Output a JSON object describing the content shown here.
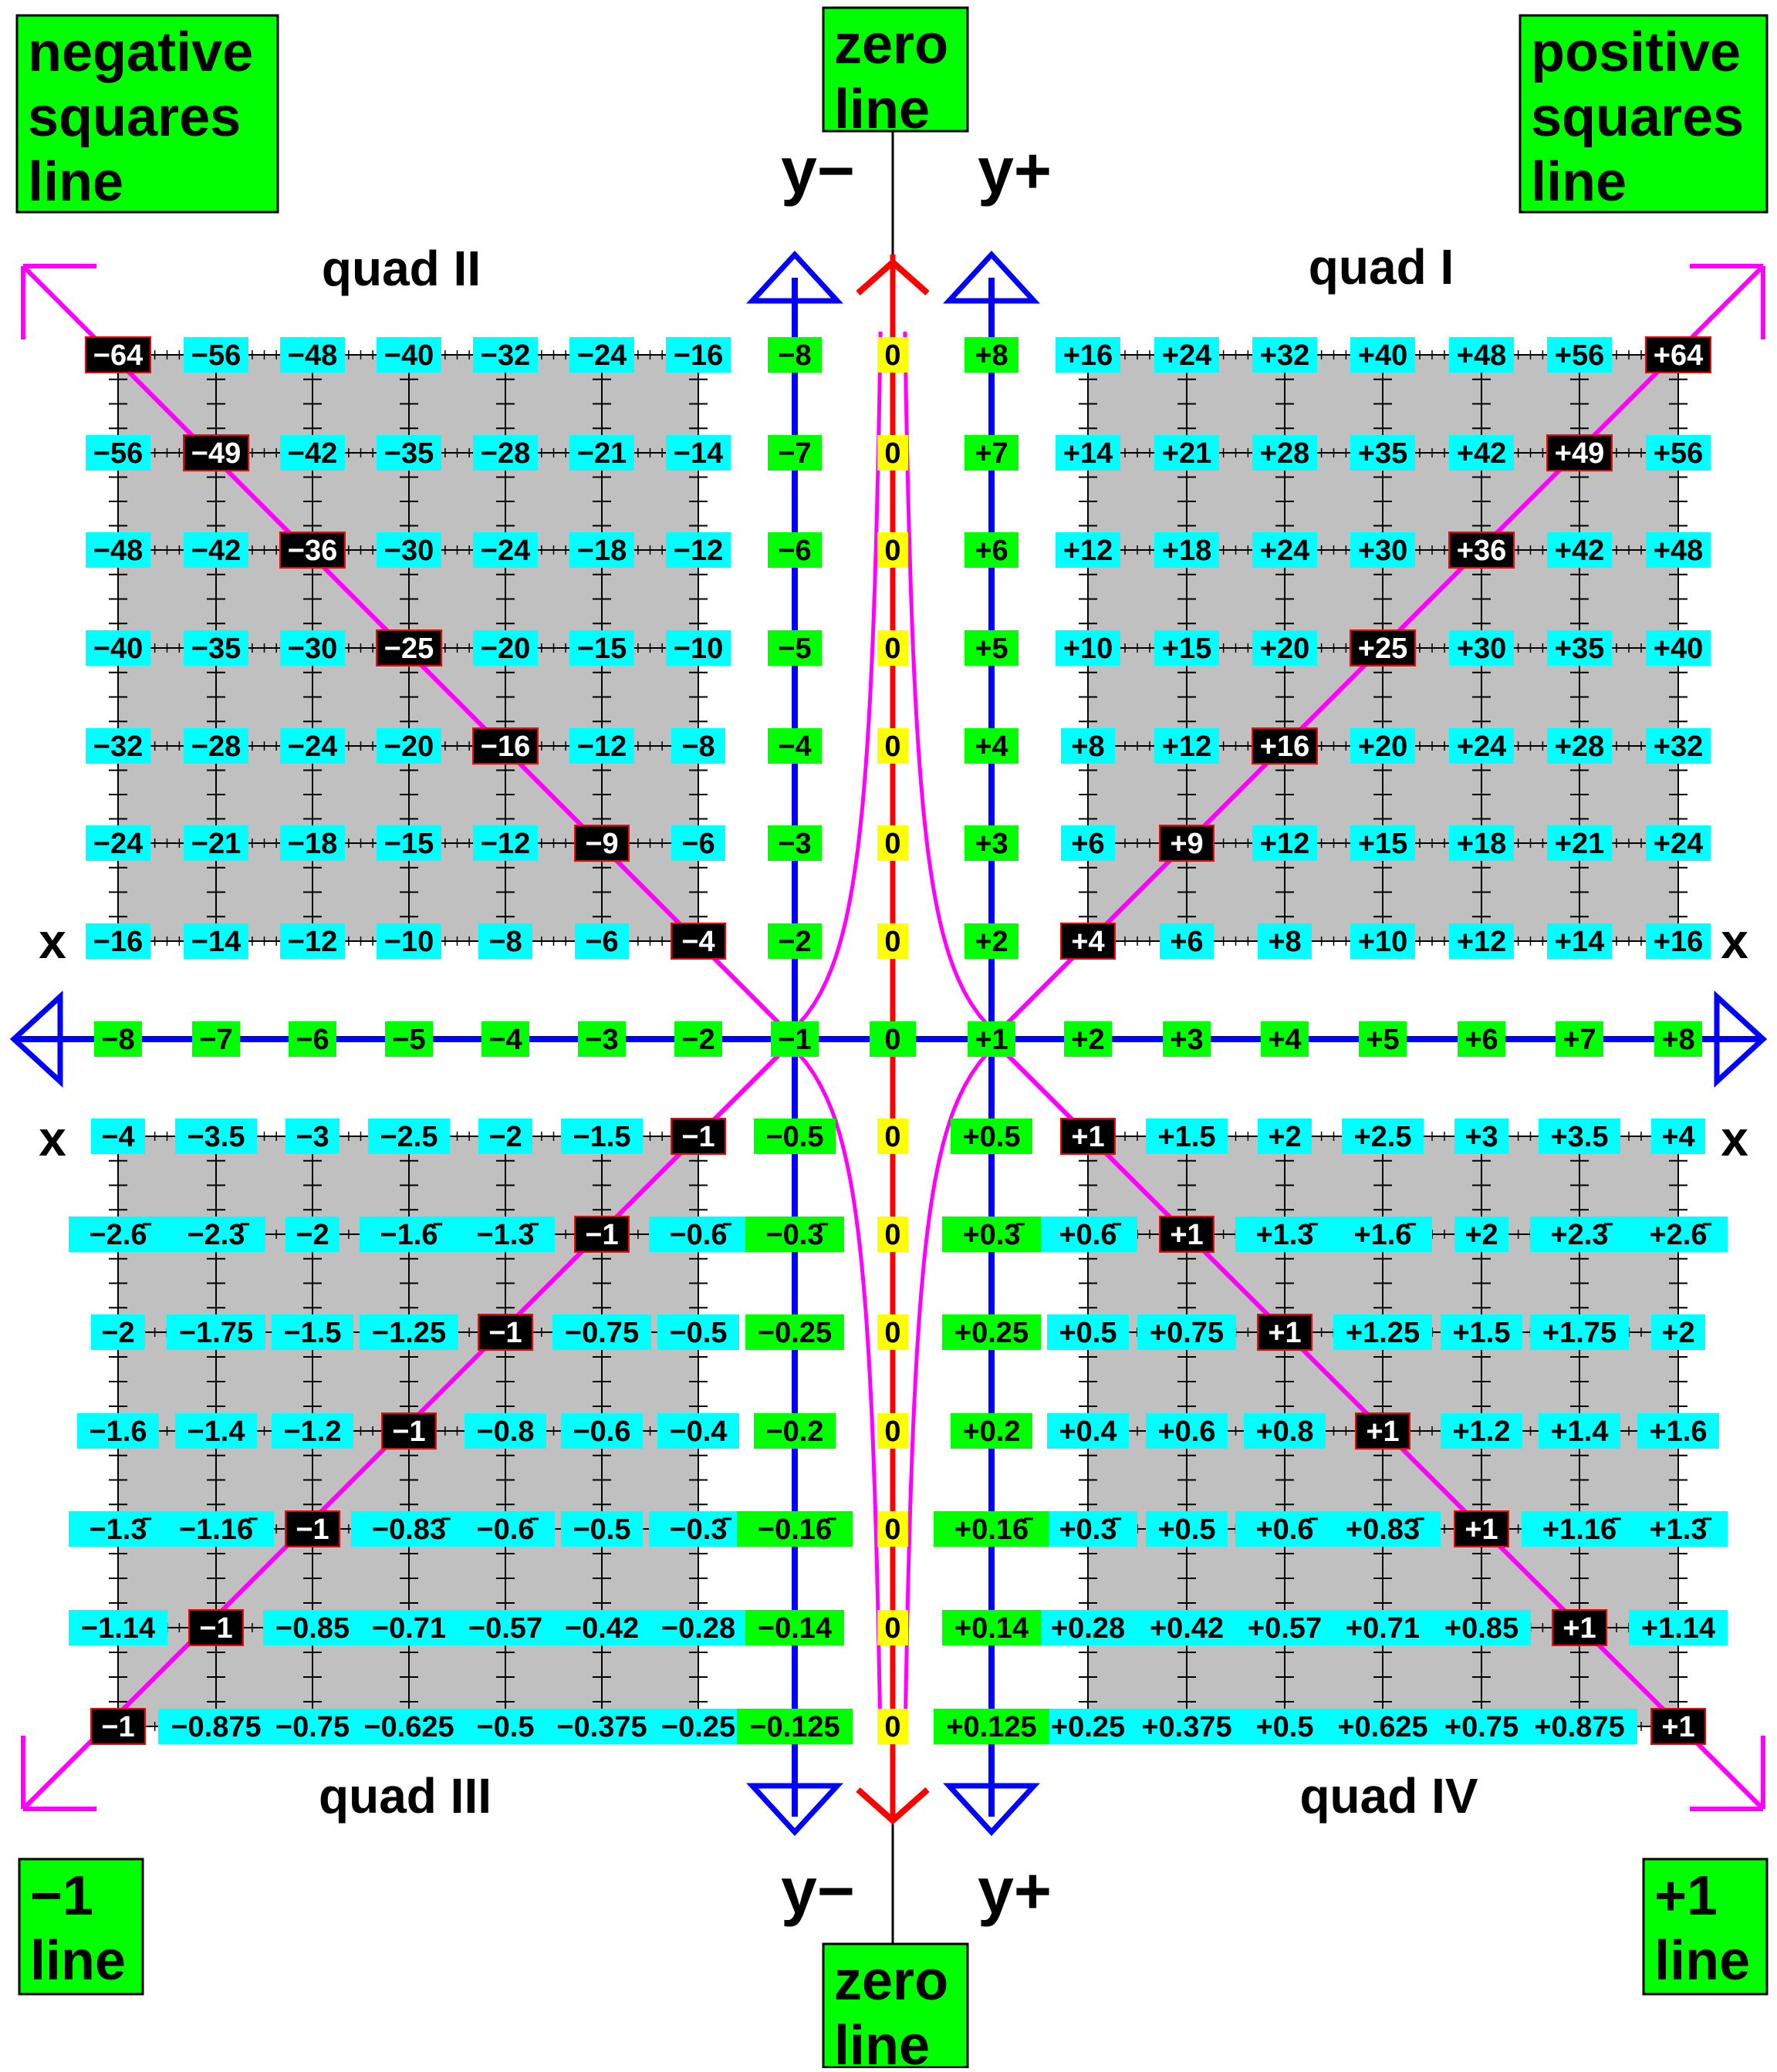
{
  "corner_boxes": {
    "negative_squares": [
      "negative",
      "squares",
      "line"
    ],
    "positive_squares": [
      "positive",
      "squares",
      "line"
    ],
    "zero_top": [
      "zero",
      "line"
    ],
    "zero_bottom": [
      "zero",
      "line"
    ],
    "minus_one": [
      "−1",
      "line"
    ],
    "plus_one": [
      "+1",
      "line"
    ]
  },
  "axis_text": {
    "y_minus": "y−",
    "y_plus": "y+",
    "x": "x"
  },
  "quadrant_labels": {
    "q1": "quad I",
    "q2": "quad II",
    "q3": "quad III",
    "q4": "quad IV"
  },
  "x_axis_labels": [
    "−8",
    "−7",
    "−6",
    "−5",
    "−4",
    "−3",
    "−2",
    "−1",
    "0",
    "+1",
    "+2",
    "+3",
    "+4",
    "+5",
    "+6",
    "+7",
    "+8"
  ],
  "left_y_column": [
    "−8",
    "−7",
    "−6",
    "−5",
    "−4",
    "−3",
    "−2",
    "−0.5",
    "−0.3̄",
    "−0.25",
    "−0.2",
    "−0.16̄",
    "−0.14",
    "−0.125"
  ],
  "right_y_column": [
    "+8",
    "+7",
    "+6",
    "+5",
    "+4",
    "+3",
    "+2",
    "+0.5",
    "+0.3̄",
    "+0.25",
    "+0.2",
    "+0.16̄",
    "+0.14",
    "+0.125"
  ],
  "zero_column": [
    "0",
    "0",
    "0",
    "0",
    "0",
    "0",
    "0",
    "0",
    "0",
    "0",
    "0",
    "0",
    "0",
    "0"
  ],
  "quad2_rows": [
    [
      "−64",
      "−56",
      "−48",
      "−40",
      "−32",
      "−24",
      "−16"
    ],
    [
      "−56",
      "−49",
      "−42",
      "−35",
      "−28",
      "−21",
      "−14"
    ],
    [
      "−48",
      "−42",
      "−36",
      "−30",
      "−24",
      "−18",
      "−12"
    ],
    [
      "−40",
      "−35",
      "−30",
      "−25",
      "−20",
      "−15",
      "−10"
    ],
    [
      "−32",
      "−28",
      "−24",
      "−20",
      "−16",
      "−12",
      "−8"
    ],
    [
      "−24",
      "−21",
      "−18",
      "−15",
      "−12",
      "−9",
      "−6"
    ],
    [
      "−16",
      "−14",
      "−12",
      "−10",
      "−8",
      "−6",
      "−4"
    ]
  ],
  "quad1_rows": [
    [
      "+16",
      "+24",
      "+32",
      "+40",
      "+48",
      "+56",
      "+64"
    ],
    [
      "+14",
      "+21",
      "+28",
      "+35",
      "+42",
      "+49",
      "+56"
    ],
    [
      "+12",
      "+18",
      "+24",
      "+30",
      "+36",
      "+42",
      "+48"
    ],
    [
      "+10",
      "+15",
      "+20",
      "+25",
      "+30",
      "+35",
      "+40"
    ],
    [
      "+8",
      "+12",
      "+16",
      "+20",
      "+24",
      "+28",
      "+32"
    ],
    [
      "+6",
      "+9",
      "+12",
      "+15",
      "+18",
      "+21",
      "+24"
    ],
    [
      "+4",
      "+6",
      "+8",
      "+10",
      "+12",
      "+14",
      "+16"
    ]
  ],
  "quad3_rows": [
    [
      "−4",
      "−3.5",
      "−3",
      "−2.5",
      "−2",
      "−1.5",
      "−1"
    ],
    [
      "−2.6̄",
      "−2.3̄",
      "−2",
      "−1.6̄",
      "−1.3̄",
      "−1",
      "−0.6̄"
    ],
    [
      "−2",
      "−1.75",
      "−1.5",
      "−1.25",
      "−1",
      "−0.75",
      "−0.5"
    ],
    [
      "−1.6",
      "−1.4",
      "−1.2",
      "−1",
      "−0.8",
      "−0.6",
      "−0.4"
    ],
    [
      "−1.3̄",
      "−1.16̄",
      "−1",
      "−0.83̄",
      "−0.6̄",
      "−0.5",
      "−0.3̄"
    ],
    [
      "−1.14",
      "−1",
      "−0.85",
      "−0.71",
      "−0.57",
      "−0.42",
      "−0.28"
    ],
    [
      "−1",
      "−0.875",
      "−0.75",
      "−0.625",
      "−0.5",
      "−0.375",
      "−0.25"
    ]
  ],
  "quad4_rows": [
    [
      "+1",
      "+1.5",
      "+2",
      "+2.5",
      "+3",
      "+3.5",
      "+4"
    ],
    [
      "+0.6̄",
      "+1",
      "+1.3̄",
      "+1.6̄",
      "+2",
      "+2.3̄",
      "+2.6̄"
    ],
    [
      "+0.5",
      "+0.75",
      "+1",
      "+1.25",
      "+1.5",
      "+1.75",
      "+2"
    ],
    [
      "+0.4",
      "+0.6",
      "+0.8",
      "+1",
      "+1.2",
      "+1.4",
      "+1.6"
    ],
    [
      "+0.3̄",
      "+0.5",
      "+0.6̄",
      "+0.83̄",
      "+1",
      "+1.16̄",
      "+1.3̄"
    ],
    [
      "+0.28",
      "+0.42",
      "+0.57",
      "+0.71",
      "+0.85",
      "+1",
      "+1.14"
    ],
    [
      "+0.25",
      "+0.375",
      "+0.5",
      "+0.625",
      "+0.75",
      "+0.875",
      "+1"
    ]
  ],
  "colors": {
    "green_box": "#00ff00",
    "cyan_box": "#00ffff",
    "highlight_box": "#000000",
    "grid_fill": "#c0c0c0",
    "axis": "#0000ff",
    "zero_axis": "#ff0000",
    "diagonal": "#ff00ff",
    "zero_value_box": "#ffff00"
  }
}
